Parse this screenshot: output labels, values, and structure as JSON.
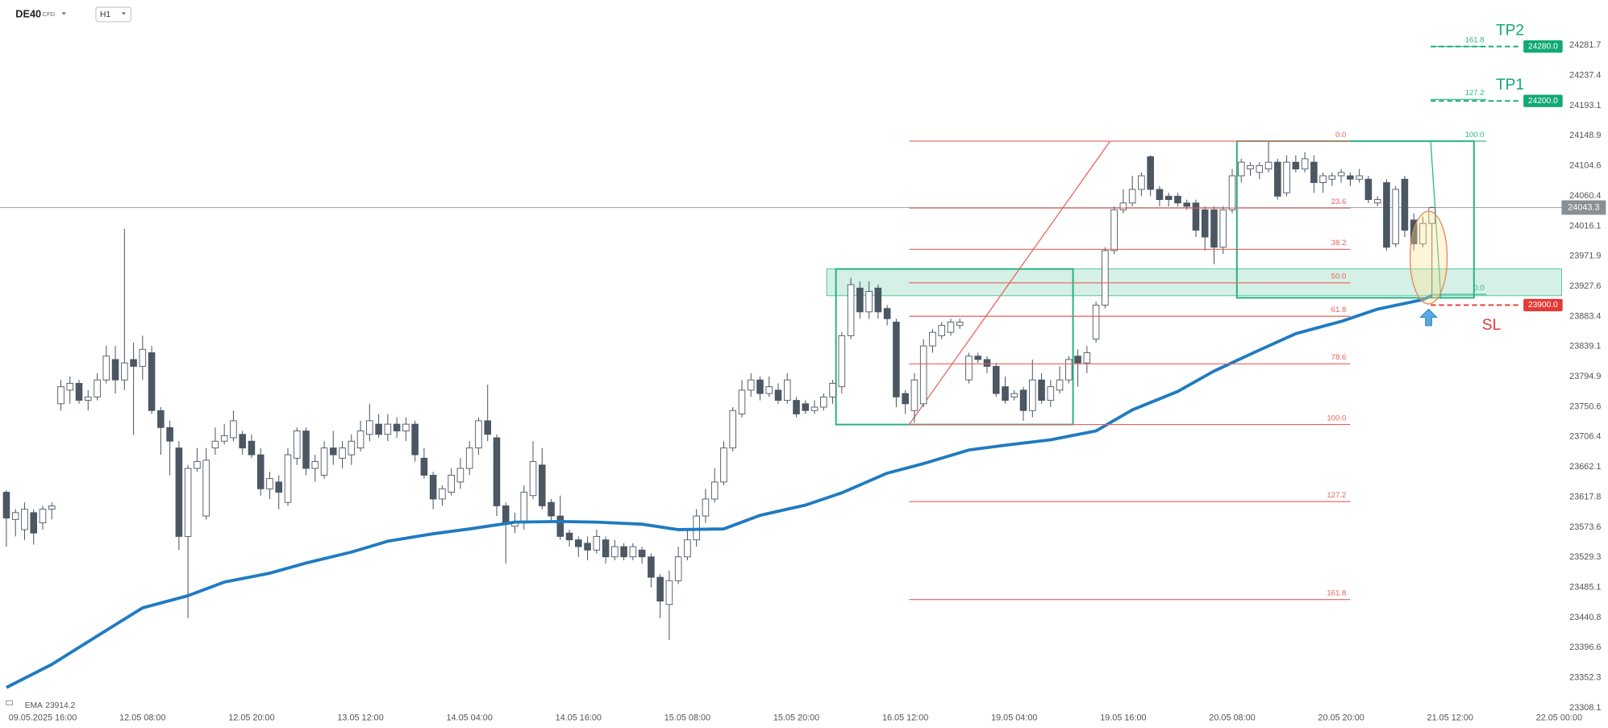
{
  "header": {
    "symbol": "DE40",
    "tag": "CFD",
    "timeframe": "H1"
  },
  "chart_data": {
    "type": "candlestick",
    "open": [
      23625,
      23585,
      23570,
      23595,
      23580,
      23600,
      23755,
      23775,
      23785,
      23760,
      23765,
      23790,
      23820,
      23790,
      23820,
      23810,
      23830,
      23745,
      23720,
      23690,
      23560,
      23660,
      23590,
      23690,
      23700,
      23705,
      23710,
      23700,
      23680,
      23630,
      23640,
      23610,
      23675,
      23715,
      23660,
      23650,
      23690,
      23675,
      23680,
      23690,
      23710,
      23725,
      23710,
      23725,
      23715,
      23725,
      23675,
      23650,
      23615,
      23625,
      23640,
      23660,
      23690,
      23730,
      23705,
      23605,
      23575,
      23580,
      23620,
      23665,
      23610,
      23590,
      23565,
      23555,
      23550,
      23540,
      23555,
      23530,
      23545,
      23530,
      23540,
      23530,
      23500,
      23460,
      23495,
      23530,
      23555,
      23590,
      23615,
      23640,
      23690,
      23740,
      23775,
      23790,
      23770,
      23775,
      23760,
      23760,
      23755,
      23745,
      23750,
      23765,
      23780,
      23855,
      23925,
      23890,
      23925,
      23895,
      23875,
      23770,
      23745,
      23755,
      23840,
      23855,
      23860,
      23870,
      23790,
      23825,
      23820,
      23810,
      23780,
      23765,
      23775,
      23745,
      23790,
      23760,
      23775,
      23790,
      23825,
      23815,
      23850,
      23900,
      23980,
      24040,
      24050,
      24070,
      24118,
      24070,
      24060,
      24060,
      24050,
      24050,
      24040,
      24040,
      23985,
      24040,
      24090,
      24100,
      24095,
      24100,
      24110,
      24065,
      24110,
      24100,
      24110,
      24080,
      24085,
      24090,
      24090,
      24085,
      24085,
      24050,
      24080,
      23990,
      24085,
      24025,
      23990,
      24020
    ],
    "high": [
      23628,
      23600,
      23610,
      23600,
      23605,
      23610,
      23790,
      23795,
      23790,
      23775,
      23800,
      23840,
      23840,
      24012,
      23845,
      23855,
      23840,
      23750,
      23730,
      23700,
      23665,
      23690,
      23690,
      23720,
      23725,
      23745,
      23715,
      23710,
      23690,
      23655,
      23650,
      23690,
      23720,
      23720,
      23680,
      23700,
      23715,
      23700,
      23710,
      23730,
      23755,
      23740,
      23740,
      23735,
      23735,
      23730,
      23690,
      23655,
      23635,
      23660,
      23675,
      23700,
      23735,
      23783,
      23710,
      23610,
      23595,
      23635,
      23700,
      23690,
      23615,
      23620,
      23570,
      23560,
      23560,
      23570,
      23560,
      23555,
      23550,
      23550,
      23545,
      23535,
      23505,
      23510,
      23545,
      23570,
      23600,
      23630,
      23660,
      23700,
      23750,
      23790,
      23800,
      23795,
      23795,
      23785,
      23800,
      23765,
      23760,
      23760,
      23770,
      23790,
      23860,
      23940,
      23935,
      23935,
      23930,
      23900,
      23880,
      23775,
      23800,
      23850,
      23865,
      23875,
      23880,
      23880,
      23830,
      23830,
      23825,
      23815,
      23795,
      23775,
      23780,
      23820,
      23800,
      23790,
      23810,
      23825,
      23835,
      23840,
      23905,
      23985,
      24045,
      24070,
      24090,
      24095,
      24120,
      24075,
      24065,
      24065,
      24055,
      24055,
      24045,
      24045,
      24045,
      24100,
      24115,
      24110,
      24110,
      24140,
      24115,
      24120,
      24120,
      24125,
      24120,
      24095,
      24095,
      24100,
      24095,
      24100,
      24090,
      24060,
      24085,
      24075,
      24090,
      24035,
      24030,
      24045
    ],
    "low": [
      23545,
      23560,
      23555,
      23548,
      23570,
      23585,
      23745,
      23755,
      23755,
      23745,
      23760,
      23785,
      23770,
      23775,
      23709,
      23790,
      23740,
      23680,
      23650,
      23540,
      23440,
      23655,
      23585,
      23680,
      23695,
      23700,
      23680,
      23675,
      23620,
      23615,
      23600,
      23605,
      23665,
      23650,
      23640,
      23645,
      23665,
      23660,
      23665,
      23685,
      23700,
      23705,
      23700,
      23705,
      23700,
      23670,
      23645,
      23600,
      23605,
      23620,
      23630,
      23650,
      23680,
      23700,
      23590,
      23520,
      23565,
      23570,
      23615,
      23600,
      23580,
      23555,
      23545,
      23530,
      23525,
      23535,
      23520,
      23525,
      23525,
      23525,
      23520,
      23485,
      23440,
      23408,
      23490,
      23525,
      23545,
      23580,
      23610,
      23635,
      23685,
      23735,
      23765,
      23760,
      23765,
      23755,
      23755,
      23735,
      23740,
      23740,
      23745,
      23755,
      23770,
      23850,
      23880,
      23880,
      23880,
      23870,
      23750,
      23740,
      23727,
      23750,
      23830,
      23850,
      23855,
      23865,
      23785,
      23815,
      23800,
      23765,
      23755,
      23760,
      23730,
      23735,
      23755,
      23750,
      23770,
      23785,
      23780,
      23800,
      23845,
      23895,
      23975,
      24035,
      24045,
      24060,
      24060,
      24045,
      24045,
      24045,
      24040,
      24000,
      23980,
      23960,
      23975,
      24035,
      24080,
      24090,
      24085,
      24095,
      24055,
      24060,
      24095,
      24095,
      24065,
      24065,
      24075,
      24080,
      24075,
      24080,
      24050,
      24045,
      23980,
      23985,
      24000,
      23980,
      23985,
      23910
    ],
    "close": [
      23587,
      23595,
      23600,
      23565,
      23600,
      23605,
      23780,
      23785,
      23760,
      23765,
      23790,
      23825,
      23790,
      23815,
      23810,
      23835,
      23745,
      23720,
      23700,
      23560,
      23660,
      23670,
      23672,
      23700,
      23708,
      23730,
      23690,
      23680,
      23630,
      23645,
      23625,
      23680,
      23715,
      23660,
      23670,
      23690,
      23680,
      23690,
      23700,
      23715,
      23730,
      23710,
      23725,
      23715,
      23725,
      23680,
      23650,
      23615,
      23630,
      23650,
      23660,
      23690,
      23730,
      23710,
      23605,
      23578,
      23580,
      23625,
      23670,
      23605,
      23590,
      23560,
      23555,
      23545,
      23540,
      23560,
      23530,
      23545,
      23530,
      23545,
      23530,
      23500,
      23465,
      23495,
      23530,
      23555,
      23590,
      23615,
      23640,
      23690,
      23745,
      23775,
      23790,
      23770,
      23780,
      23760,
      23790,
      23740,
      23745,
      23750,
      23765,
      23785,
      23855,
      23930,
      23890,
      23920,
      23890,
      23880,
      23765,
      23755,
      23790,
      23840,
      23860,
      23870,
      23875,
      23875,
      23825,
      23820,
      23810,
      23770,
      23760,
      23770,
      23745,
      23790,
      23760,
      23780,
      23790,
      23820,
      23815,
      23830,
      23900,
      23980,
      24040,
      24050,
      24070,
      24090,
      24070,
      24055,
      24055,
      24050,
      24045,
      24010,
      24000,
      23985,
      24040,
      24090,
      24110,
      24105,
      24105,
      24110,
      24060,
      24110,
      24100,
      24115,
      24080,
      24090,
      24090,
      24095,
      24085,
      24090,
      24055,
      24055,
      23985,
      24070,
      24010,
      23990,
      24020,
      24043.3
    ],
    "up_color": "#ffffff",
    "down_color": "#4b5763",
    "xlim": [
      -0.7,
      171.5
    ],
    "xticks": [
      {
        "value": 4,
        "label": "09.05.2025 16:00"
      },
      {
        "value": 15,
        "label": "12.05 08:00"
      },
      {
        "value": 27,
        "label": "12.05 20:00"
      },
      {
        "value": 39,
        "label": "13.05 12:00"
      },
      {
        "value": 51,
        "label": "14.05 04:00"
      },
      {
        "value": 63,
        "label": "14.05 16:00"
      },
      {
        "value": 75,
        "label": "15.05 08:00"
      },
      {
        "value": 87,
        "label": "15.05 20:00"
      },
      {
        "value": 99,
        "label": "16.05 12:00"
      },
      {
        "value": 111,
        "label": "19.05 04:00"
      },
      {
        "value": 123,
        "label": "19.05 16:00"
      },
      {
        "value": 135,
        "label": "20.05 08:00"
      },
      {
        "value": 147,
        "label": "20.05 20:00"
      },
      {
        "value": 159,
        "label": "21.05 12:00"
      },
      {
        "value": 171,
        "label": "22.05 00:00"
      }
    ],
    "ylim": [
      23303.5,
      24348.3
    ],
    "yticks": [
      24281.7,
      24237.4,
      24193.1,
      24148.9,
      24104.6,
      24060.4,
      24016.1,
      23971.9,
      23927.6,
      23883.4,
      23839.1,
      23794.9,
      23750.6,
      23706.4,
      23662.1,
      23617.8,
      23573.6,
      23529.3,
      23485.1,
      23440.8,
      23396.6,
      23352.3,
      23308.1
    ],
    "last_price": 24043.3,
    "ema": {
      "name": "EMA",
      "color": "#1f7bc1",
      "x": [
        0,
        5,
        11,
        15,
        20,
        24,
        29,
        33,
        38,
        42,
        47,
        51,
        56,
        61,
        65,
        70,
        74,
        79,
        83,
        88,
        92,
        97,
        101,
        106,
        110,
        115,
        120,
        124,
        129,
        133,
        138,
        142,
        147,
        151,
        156,
        157
      ],
      "values": [
        23338,
        23372,
        23422,
        23455,
        23473,
        23493,
        23506,
        23521,
        23537,
        23553,
        23564,
        23571,
        23581,
        23582,
        23581,
        23578,
        23570,
        23571,
        23591,
        23606,
        23624,
        23653,
        23667,
        23687,
        23694,
        23702,
        23715,
        23746,
        23773,
        23803,
        23834,
        23858,
        23876,
        23894,
        23908,
        23914.2
      ]
    },
    "fib_red": {
      "color": "#e8615c",
      "levels": [
        {
          "label": "0.0",
          "value": 24140.9
        },
        {
          "label": "23.6",
          "value": 24042.6
        },
        {
          "label": "38.2",
          "value": 23981.8
        },
        {
          "label": "50.0",
          "value": 23932.7
        },
        {
          "label": "61.8",
          "value": 23883.6
        },
        {
          "label": "78.6",
          "value": 23813.6
        },
        {
          "label": "100.0",
          "value": 23724.5
        },
        {
          "label": "127.2",
          "value": 23611.2
        },
        {
          "label": "161.8",
          "value": 23467.2
        }
      ]
    },
    "fib_green": {
      "color": "#2bb58a",
      "levels": [
        {
          "label": "161.8",
          "value": 24280.0
        },
        {
          "label": "127.2",
          "value": 24202.2
        },
        {
          "label": "100.0",
          "value": 24140.9
        },
        {
          "label": "0.0",
          "value": 23915.8
        }
      ]
    },
    "targets": [
      {
        "name": "TP2",
        "value": 24280,
        "label": "24280.0",
        "color": "#12a974"
      },
      {
        "name": "TP1",
        "value": 24200,
        "label": "24200.0",
        "color": "#12a974"
      },
      {
        "name": "SL",
        "value": 23900,
        "label": "23900.0",
        "color": "#e53935"
      }
    ]
  }
}
